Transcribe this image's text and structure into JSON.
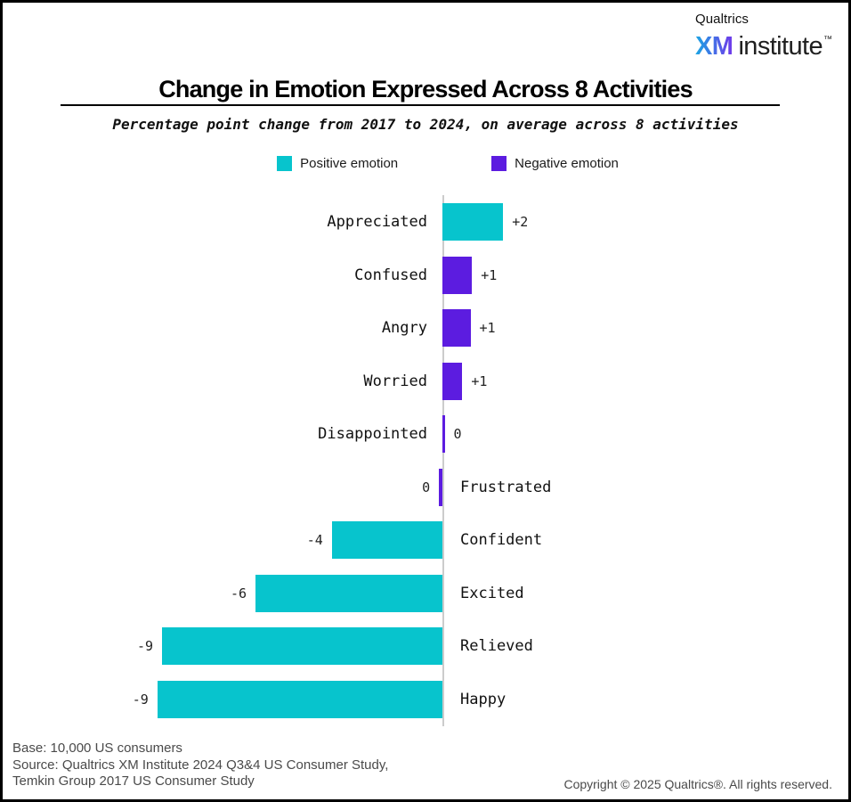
{
  "header": {
    "brand_top": "Qualtrics",
    "brand_xm": "XM",
    "brand_institute": "institute",
    "brand_tm": "™"
  },
  "title": "Change in Emotion Expressed Across 8 Activities",
  "subtitle": "Percentage point change from 2017 to 2024, on average across 8 activities",
  "legend": [
    {
      "label": "Positive emotion",
      "color": "#07c4cd"
    },
    {
      "label": "Negative emotion",
      "color": "#5c1ce0"
    }
  ],
  "chart_data": {
    "type": "bar",
    "orientation": "horizontal",
    "title": "Change in Emotion Expressed Across 8 Activities",
    "subtitle": "Percentage point change from 2017 to 2024, on average across 8 activities",
    "xlabel": "Percentage point change",
    "xlim": [
      -10,
      3
    ],
    "baseline": 0,
    "grid": false,
    "legend_position": "top-center",
    "categories": [
      "Appreciated",
      "Confused",
      "Angry",
      "Worried",
      "Disappointed",
      "Frustrated",
      "Confident",
      "Excited",
      "Relieved",
      "Happy"
    ],
    "values_displayed": [
      "+2",
      "+1",
      "+1",
      "+1",
      "0",
      "0",
      "-4",
      "-6",
      "-9",
      "-9"
    ],
    "colors": {
      "positive": "#07c4cd",
      "negative": "#5c1ce0"
    },
    "rows": [
      {
        "category": "Appreciated",
        "value_label": "+2",
        "value": 1.95,
        "emotion": "positive"
      },
      {
        "category": "Confused",
        "value_label": "+1",
        "value": 0.95,
        "emotion": "negative"
      },
      {
        "category": "Angry",
        "value_label": "+1",
        "value": 0.9,
        "emotion": "negative"
      },
      {
        "category": "Worried",
        "value_label": "+1",
        "value": 0.64,
        "emotion": "negative"
      },
      {
        "category": "Disappointed",
        "value_label": "0",
        "value": 0.07,
        "emotion": "negative"
      },
      {
        "category": "Frustrated",
        "value_label": "0",
        "value": -0.11,
        "emotion": "negative"
      },
      {
        "category": "Confident",
        "value_label": "-4",
        "value": -3.55,
        "emotion": "positive"
      },
      {
        "category": "Excited",
        "value_label": "-6",
        "value": -6.0,
        "emotion": "positive"
      },
      {
        "category": "Relieved",
        "value_label": "-9",
        "value": -9.0,
        "emotion": "positive"
      },
      {
        "category": "Happy",
        "value_label": "-9",
        "value": -9.15,
        "emotion": "positive"
      }
    ]
  },
  "footer": {
    "base": "Base: 10,000 US consumers",
    "source_line1": "Source: Qualtrics XM Institute 2024 Q3&4 US Consumer Study,",
    "source_line2": "Temkin Group 2017 US Consumer Study",
    "copyright": "Copyright © 2025 Qualtrics®. All rights reserved."
  }
}
